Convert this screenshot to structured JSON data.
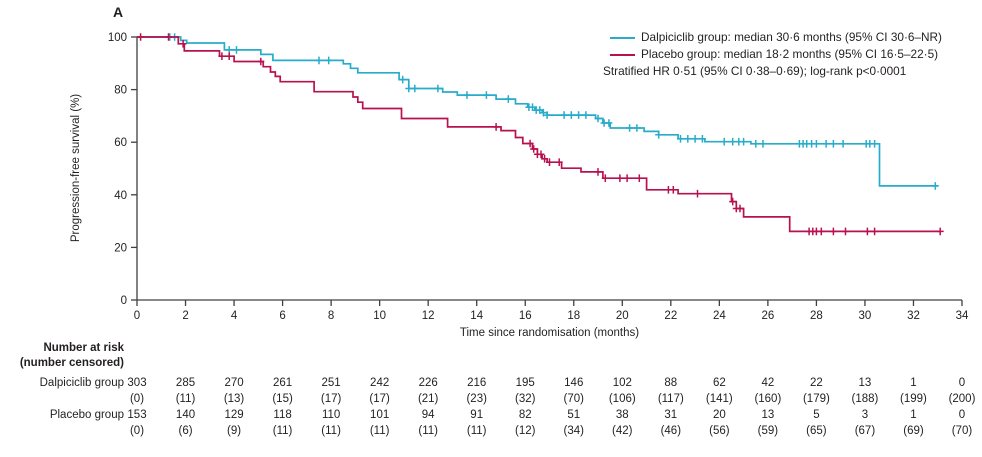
{
  "panel_label": "A",
  "colors": {
    "dalpiciclib": "#27accb",
    "placebo": "#b8114f",
    "axis": "#404040",
    "text": "#231f20"
  },
  "legend": {
    "items": [
      {
        "name": "Dalpiciclib group",
        "label": "Dalpiciclib group: median 30·6 months (95% CI 30·6–NR)"
      },
      {
        "name": "Placebo group",
        "label": "Placebo group: median 18·2 months (95% CI 16·5–22·5)"
      }
    ],
    "note": "Stratified HR 0·51 (95% CI 0·38–0·69); log-rank p<0·0001"
  },
  "chart_data": {
    "type": "line",
    "subtype": "kaplan-meier-step",
    "title": "",
    "xlabel": "Time since randomisation (months)",
    "ylabel": "Progression-free survival (%)",
    "xlim": [
      0,
      34
    ],
    "ylim": [
      0,
      100
    ],
    "xticks": [
      0,
      2,
      4,
      6,
      8,
      10,
      12,
      14,
      16,
      18,
      20,
      22,
      24,
      26,
      28,
      30,
      32,
      34
    ],
    "yticks": [
      0,
      20,
      40,
      60,
      80,
      100
    ],
    "grid": false,
    "legend_position": "top-right",
    "series": [
      {
        "name": "Dalpiciclib group",
        "color": "#27accb",
        "median_months": "30·6",
        "ci": "30·6–NR",
        "end_x": 33.0,
        "steps": [
          [
            0,
            100
          ],
          [
            1.8,
            98.7
          ],
          [
            2.05,
            97.7
          ],
          [
            3.6,
            95.1
          ],
          [
            5.1,
            93.4
          ],
          [
            5.6,
            91.1
          ],
          [
            8.5,
            89.8
          ],
          [
            8.8,
            88.1
          ],
          [
            9.1,
            86.4
          ],
          [
            10.8,
            83.8
          ],
          [
            11.2,
            80.4
          ],
          [
            12.6,
            79.1
          ],
          [
            13.2,
            77.9
          ],
          [
            14.8,
            76.4
          ],
          [
            15.6,
            74.6
          ],
          [
            16.1,
            73.3
          ],
          [
            16.4,
            72.2
          ],
          [
            16.7,
            71.2
          ],
          [
            16.9,
            70.3
          ],
          [
            18.9,
            69.0
          ],
          [
            19.2,
            67.3
          ],
          [
            19.5,
            65.4
          ],
          [
            20.9,
            64.1
          ],
          [
            21.5,
            62.8
          ],
          [
            22.3,
            61.3
          ],
          [
            23.4,
            60.2
          ],
          [
            25.3,
            59.4
          ],
          [
            30.6,
            43.4
          ]
        ],
        "censor_times": [
          1.35,
          1.55,
          3.8,
          4.1,
          7.5,
          7.9,
          10.95,
          11.2,
          11.45,
          12.4,
          13.6,
          14.4,
          15.3,
          16.15,
          16.3,
          16.45,
          16.6,
          16.75,
          16.9,
          17.6,
          17.9,
          18.2,
          18.5,
          19.0,
          19.25,
          19.45,
          20.3,
          20.6,
          21.5,
          22.4,
          22.7,
          23.0,
          23.3,
          24.2,
          24.55,
          24.8,
          25.0,
          25.5,
          25.8,
          27.3,
          27.45,
          27.6,
          27.8,
          28.0,
          28.4,
          28.7,
          29.1,
          30.05,
          30.2,
          30.4,
          32.9
        ]
      },
      {
        "name": "Placebo group",
        "color": "#b8114f",
        "median_months": "18·2",
        "ci": "16·5–22·5",
        "end_x": 33.1,
        "steps": [
          [
            0,
            100
          ],
          [
            1.7,
            97.4
          ],
          [
            1.95,
            94.7
          ],
          [
            3.4,
            92.7
          ],
          [
            4.0,
            90.7
          ],
          [
            5.2,
            88.7
          ],
          [
            5.5,
            86.7
          ],
          [
            5.7,
            85.0
          ],
          [
            5.9,
            83.0
          ],
          [
            7.3,
            79.2
          ],
          [
            8.9,
            77.2
          ],
          [
            9.1,
            75.2
          ],
          [
            9.3,
            72.8
          ],
          [
            10.9,
            69.0
          ],
          [
            12.8,
            65.8
          ],
          [
            15.0,
            64.4
          ],
          [
            15.6,
            61.8
          ],
          [
            15.9,
            59.5
          ],
          [
            16.3,
            57.4
          ],
          [
            16.5,
            55.4
          ],
          [
            16.7,
            53.7
          ],
          [
            16.9,
            52.4
          ],
          [
            17.5,
            50.1
          ],
          [
            18.3,
            48.7
          ],
          [
            19.2,
            46.3
          ],
          [
            21.0,
            41.9
          ],
          [
            22.3,
            40.4
          ],
          [
            24.5,
            37.4
          ],
          [
            24.7,
            34.8
          ],
          [
            25.0,
            31.6
          ],
          [
            26.9,
            26.1
          ]
        ],
        "censor_times": [
          0.15,
          1.3,
          1.9,
          3.5,
          3.8,
          5.1,
          14.8,
          16.2,
          16.35,
          16.5,
          16.65,
          16.8,
          17.0,
          17.4,
          19.0,
          19.3,
          19.9,
          20.2,
          20.7,
          21.9,
          22.1,
          23.1,
          24.55,
          24.7,
          24.85,
          27.7,
          27.85,
          28.0,
          28.2,
          28.7,
          29.2,
          30.1,
          30.4,
          33.1
        ]
      }
    ]
  },
  "risk_table": {
    "header_line1": "Number at risk",
    "header_line2": "(number censored)",
    "timepoints": [
      0,
      2,
      4,
      6,
      8,
      10,
      12,
      14,
      16,
      18,
      20,
      22,
      24,
      26,
      28,
      30,
      32,
      34
    ],
    "rows": [
      {
        "label": "Dalpiciclib group",
        "at_risk": [
          "303",
          "285",
          "270",
          "261",
          "251",
          "242",
          "226",
          "216",
          "195",
          "146",
          "102",
          "88",
          "62",
          "42",
          "22",
          "13",
          "1",
          "0"
        ],
        "censored": [
          "(0)",
          "(11)",
          "(13)",
          "(15)",
          "(17)",
          "(17)",
          "(21)",
          "(23)",
          "(32)",
          "(70)",
          "(106)",
          "(117)",
          "(141)",
          "(160)",
          "(179)",
          "(188)",
          "(199)",
          "(200)"
        ]
      },
      {
        "label": "Placebo group",
        "at_risk": [
          "153",
          "140",
          "129",
          "118",
          "110",
          "101",
          "94",
          "91",
          "82",
          "51",
          "38",
          "31",
          "20",
          "13",
          "5",
          "3",
          "1",
          "0"
        ],
        "censored": [
          "(0)",
          "(6)",
          "(9)",
          "(11)",
          "(11)",
          "(11)",
          "(11)",
          "(11)",
          "(12)",
          "(34)",
          "(42)",
          "(46)",
          "(56)",
          "(59)",
          "(65)",
          "(67)",
          "(69)",
          "(70)"
        ]
      }
    ]
  }
}
